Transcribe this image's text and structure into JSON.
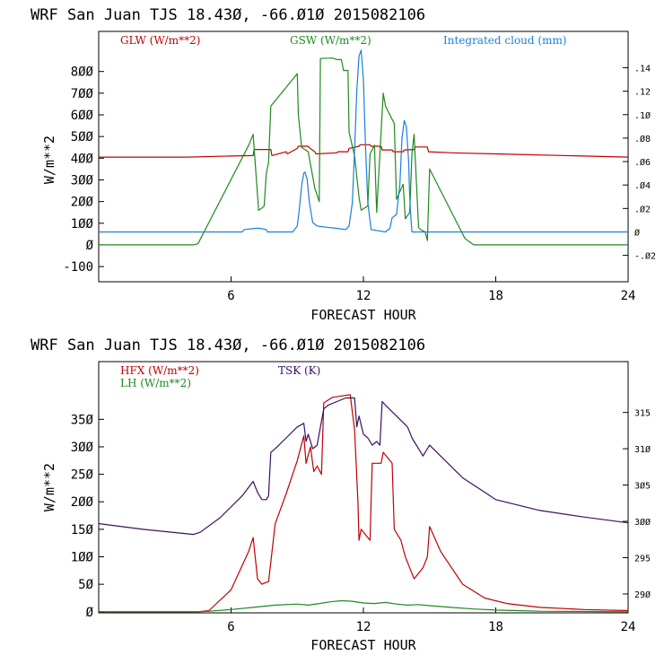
{
  "colors": {
    "red": "#c00000",
    "green": "#1e8a1e",
    "blue": "#1a7fd6",
    "purple": "#3c1060"
  },
  "chart_data": [
    {
      "type": "line",
      "title": "WRF  San Juan TJS  18.43Ø, -66.Ø1Ø  2015082106",
      "xlabel": "FORECAST HOUR",
      "ylabel": "W/m**2",
      "xlim": [
        0,
        24
      ],
      "ylim": [
        -170,
        985
      ],
      "x_ticks": [
        6,
        12,
        18,
        24
      ],
      "x_tick_labels": [
        "6",
        "12",
        "18",
        "24"
      ],
      "y_ticks": [
        -100,
        0,
        100,
        200,
        300,
        400,
        500,
        600,
        700,
        800
      ],
      "y_tick_labels": [
        "-100",
        "Ø",
        "1ØØ",
        "2ØØ",
        "3ØØ",
        "4ØØ",
        "5ØØ",
        "6ØØ",
        "7ØØ",
        "8ØØ"
      ],
      "y2lim": [
        -0.0425,
        0.171
      ],
      "y2_ticks": [
        -0.02,
        0,
        0.02,
        0.04,
        0.06,
        0.08,
        0.1,
        0.12,
        0.14
      ],
      "y2_tick_labels": [
        "-.Ø2",
        "Ø",
        ".Ø2",
        ".Ø4",
        ".Ø6",
        ".Ø8",
        ".1Ø",
        ".12",
        ".14"
      ],
      "series": [
        {
          "name": "GLW (W/m**2)",
          "color": "red",
          "axis": "left",
          "x": [
            0,
            4,
            6,
            7,
            7.05,
            7.8,
            7.85,
            8.5,
            8.55,
            9,
            9.05,
            9.5,
            9.55,
            9.8,
            9.85,
            10.8,
            10.85,
            11.3,
            11.35,
            11.8,
            11.85,
            12.3,
            12.35,
            12.8,
            12.85,
            13.3,
            13.35,
            13.8,
            13.85,
            14.3,
            14.35,
            14.9,
            14.95,
            16,
            18,
            24
          ],
          "y": [
            405,
            405,
            410,
            412,
            440,
            440,
            412,
            430,
            420,
            445,
            455,
            455,
            448,
            430,
            420,
            425,
            430,
            430,
            445,
            455,
            462,
            462,
            455,
            455,
            438,
            438,
            430,
            430,
            438,
            440,
            452,
            452,
            430,
            425,
            420,
            405
          ]
        },
        {
          "name": "GSW (W/m**2)",
          "color": "green",
          "axis": "left",
          "x": [
            0,
            4.3,
            4.5,
            6.8,
            7.0,
            7.15,
            7.25,
            7.4,
            7.5,
            7.6,
            7.7,
            7.8,
            9.0,
            9.05,
            9.2,
            9.5,
            9.8,
            10.0,
            10.05,
            10.6,
            10.8,
            11.0,
            11.1,
            11.3,
            11.35,
            11.6,
            11.8,
            11.9,
            12.2,
            12.3,
            12.5,
            12.6,
            12.9,
            13.0,
            13.4,
            13.5,
            13.8,
            13.9,
            14.1,
            14.2,
            14.3,
            14.5,
            14.6,
            14.8,
            14.9,
            15.0,
            16.6,
            17.0,
            24
          ],
          "y": [
            0,
            0,
            5,
            460,
            510,
            300,
            160,
            170,
            180,
            330,
            380,
            640,
            790,
            600,
            450,
            430,
            260,
            200,
            860,
            862,
            855,
            855,
            805,
            805,
            520,
            410,
            220,
            160,
            180,
            420,
            460,
            150,
            700,
            640,
            560,
            210,
            280,
            120,
            150,
            420,
            510,
            80,
            70,
            60,
            20,
            350,
            30,
            0,
            0
          ]
        },
        {
          "name": "Integrated cloud (mm)",
          "color": "blue",
          "axis": "right",
          "x": [
            0,
            6.5,
            6.6,
            7.1,
            7.2,
            7.3,
            7.6,
            7.65,
            8.8,
            9.0,
            9.1,
            9.2,
            9.3,
            9.35,
            9.45,
            9.55,
            9.7,
            9.9,
            10.3,
            10.8,
            11.2,
            11.35,
            11.5,
            11.6,
            11.7,
            11.8,
            11.9,
            12.0,
            12.1,
            12.2,
            12.35,
            13.0,
            13.2,
            13.3,
            13.5,
            13.65,
            13.75,
            13.85,
            13.95,
            14.05,
            14.1,
            14.15,
            14.2,
            24
          ],
          "y": [
            0,
            0,
            0.002,
            0.003,
            0.003,
            0.003,
            0.002,
            0,
            0,
            0.005,
            0.02,
            0.04,
            0.05,
            0.051,
            0.045,
            0.025,
            0.008,
            0.005,
            0.004,
            0.003,
            0.002,
            0.005,
            0.025,
            0.07,
            0.12,
            0.15,
            0.155,
            0.13,
            0.07,
            0.025,
            0.002,
            0,
            0.003,
            0.012,
            0.015,
            0.04,
            0.08,
            0.095,
            0.09,
            0.06,
            0.03,
            0.012,
            0,
            0
          ]
        }
      ]
    },
    {
      "type": "line",
      "title": "WRF  San Juan TJS  18.43Ø, -66.Ø1Ø  2015082106",
      "xlabel": "FORECAST HOUR",
      "ylabel": "W/m**2",
      "xlim": [
        0,
        24
      ],
      "ylim": [
        -2,
        455
      ],
      "x_ticks": [
        6,
        12,
        18,
        24
      ],
      "x_tick_labels": [
        "6",
        "12",
        "18",
        "24"
      ],
      "y_ticks": [
        0,
        50,
        100,
        150,
        200,
        250,
        300,
        350
      ],
      "y_tick_labels": [
        "Ø",
        "5Ø",
        "1ØØ",
        "15Ø",
        "2ØØ",
        "25Ø",
        "3ØØ",
        "35Ø"
      ],
      "y2lim": [
        287.4,
        322
      ],
      "y2_ticks": [
        290,
        295,
        300,
        305,
        310,
        315
      ],
      "y2_tick_labels": [
        "29Ø",
        "295",
        "3ØØ",
        "3Ø5",
        "31Ø",
        "315"
      ],
      "series": [
        {
          "name": "HFX (W/m**2)",
          "color": "red",
          "axis": "left",
          "x": [
            0,
            4.5,
            5.0,
            6.0,
            6.8,
            7.0,
            7.2,
            7.4,
            7.7,
            7.8,
            8.0,
            8.5,
            9.0,
            9.3,
            9.4,
            9.6,
            9.75,
            9.9,
            10.1,
            10.2,
            10.6,
            11.4,
            11.6,
            11.75,
            11.8,
            11.9,
            12.3,
            12.4,
            12.8,
            12.9,
            13.3,
            13.4,
            13.7,
            13.9,
            14.1,
            14.3,
            14.5,
            14.7,
            14.9,
            15.0,
            15.5,
            16.5,
            17.5,
            18.5,
            20.0,
            22.0,
            24.0
          ],
          "y": [
            0,
            0,
            2,
            40,
            110,
            135,
            60,
            50,
            55,
            90,
            160,
            215,
            275,
            320,
            270,
            300,
            255,
            265,
            250,
            380,
            390,
            395,
            330,
            200,
            130,
            150,
            130,
            270,
            270,
            290,
            270,
            150,
            130,
            100,
            80,
            60,
            70,
            80,
            100,
            155,
            110,
            50,
            25,
            15,
            8,
            4,
            2
          ]
        },
        {
          "name": "LH (W/m**2)",
          "color": "green",
          "axis": "left",
          "x": [
            0,
            4.5,
            5.0,
            6.0,
            7.0,
            8.0,
            9.0,
            9.5,
            10.0,
            10.5,
            11.0,
            11.5,
            12.0,
            12.5,
            13.0,
            13.5,
            14.0,
            14.5,
            15.0,
            16.0,
            17.0,
            18.0,
            19.0,
            20.0,
            24.0
          ],
          "y": [
            0,
            0,
            1,
            4,
            8,
            12,
            14,
            12,
            15,
            18,
            20,
            19,
            16,
            15,
            17,
            14,
            12,
            13,
            11,
            8,
            5,
            3,
            2,
            1,
            0
          ]
        },
        {
          "name": "TSK (K)",
          "color": "purple",
          "axis": "right",
          "x": [
            0,
            2.0,
            4.3,
            4.6,
            5.5,
            6.5,
            7.0,
            7.2,
            7.4,
            7.6,
            7.7,
            7.8,
            8.0,
            8.5,
            9.0,
            9.3,
            9.4,
            9.5,
            9.7,
            9.9,
            10.2,
            10.4,
            10.8,
            11.2,
            11.6,
            11.7,
            11.8,
            12.0,
            12.2,
            12.4,
            12.6,
            12.75,
            12.85,
            13.0,
            13.5,
            14.0,
            14.2,
            14.5,
            14.7,
            14.9,
            15.0,
            15.5,
            16.5,
            18.0,
            20.0,
            22.0,
            24.0
          ],
          "y": [
            299.7,
            298.9,
            298.2,
            298.5,
            300.5,
            303.5,
            305.5,
            304.0,
            303.0,
            303.0,
            303.5,
            309.5,
            310.0,
            311.5,
            313.0,
            313.5,
            311.0,
            312.0,
            310.0,
            310.5,
            315.5,
            316.0,
            316.5,
            317.0,
            317.0,
            313.0,
            314.5,
            312.0,
            311.5,
            310.5,
            311.0,
            310.5,
            316.5,
            316.0,
            314.5,
            313.0,
            311.5,
            310.0,
            309.0,
            310.0,
            310.5,
            309.0,
            306.0,
            303.0,
            301.5,
            300.6,
            299.8
          ]
        }
      ]
    }
  ]
}
